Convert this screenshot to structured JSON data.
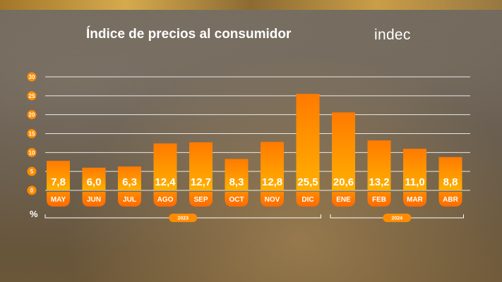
{
  "header": {
    "title": "Índice de precios al consumidor",
    "logo": "indec",
    "unit": "%"
  },
  "colors": {
    "bar_top": "#ff7a00",
    "bar_bottom": "#ffb000",
    "tick_dot": "#ff8c00",
    "gridline": "#ffffff"
  },
  "chart_data": {
    "type": "bar",
    "categories": [
      "MAY",
      "JUN",
      "JUL",
      "AGO",
      "SEP",
      "OCT",
      "NOV",
      "DIC",
      "ENE",
      "FEB",
      "MAR",
      "ABR"
    ],
    "values": [
      7.8,
      6.0,
      6.3,
      12.4,
      12.7,
      8.3,
      12.8,
      25.5,
      20.6,
      13.2,
      11.0,
      8.8
    ],
    "value_labels": [
      "7,8",
      "6,0",
      "6,3",
      "12,4",
      "12,7",
      "8,3",
      "12,8",
      "25,5",
      "20,6",
      "13,2",
      "11,0",
      "8,8"
    ],
    "title": "Índice de precios al consumidor",
    "xlabel": "",
    "ylabel": "%",
    "ylim": [
      0,
      30
    ],
    "yticks": [
      0,
      5,
      10,
      15,
      20,
      25,
      30
    ],
    "grid": true,
    "year_groups": [
      {
        "label": "2023",
        "first": 0,
        "last": 7
      },
      {
        "label": "2024",
        "first": 8,
        "last": 11
      }
    ]
  }
}
